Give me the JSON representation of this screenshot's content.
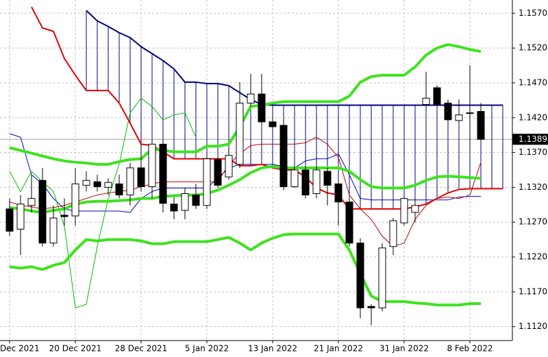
{
  "chart_data": {
    "type": "candlestick",
    "categories": [
      "Dec 2021",
      null,
      null,
      null,
      null,
      null,
      "20 Dec 2021",
      null,
      null,
      null,
      null,
      null,
      "28 Dec 2021",
      null,
      null,
      null,
      null,
      null,
      "5 Jan 2022",
      null,
      null,
      null,
      null,
      null,
      "13 Jan 2022",
      null,
      null,
      null,
      null,
      null,
      "21 Jan 2022",
      null,
      null,
      null,
      null,
      null,
      "31 Jan 2022",
      null,
      null,
      null,
      null,
      null,
      "8 Feb 2022",
      null,
      null,
      null
    ],
    "open": [
      1.1289,
      1.126,
      1.1294,
      1.133,
      1.124,
      1.128,
      1.1279,
      1.1323,
      1.1328,
      1.132,
      1.1325,
      1.1309,
      1.1348,
      1.1321,
      1.1382,
      1.1296,
      1.1287,
      1.1309,
      1.1294,
      1.136,
      1.1335,
      1.1353,
      1.1441,
      1.1454,
      1.1414,
      1.1409,
      1.1321,
      1.1345,
      1.1311,
      1.1343,
      1.1325,
      1.1299,
      1.124,
      1.1149,
      1.1147,
      1.1235,
      1.1269,
      1.1284,
      1.1439,
      1.1463,
      1.1441,
      1.1416,
      1.1426,
      1.1429,
      null,
      null
    ],
    "high": [
      1.1304,
      1.1309,
      1.1338,
      1.1348,
      1.1294,
      1.1304,
      1.1348,
      1.1343,
      1.1338,
      1.1333,
      1.1338,
      1.1355,
      1.1382,
      1.1387,
      1.1392,
      1.1306,
      1.1319,
      1.1325,
      1.1365,
      1.1365,
      1.1377,
      1.1471,
      1.1483,
      1.1483,
      1.1422,
      1.1417,
      1.1353,
      1.1353,
      1.1353,
      1.1348,
      1.1331,
      1.1304,
      1.1247,
      1.1152,
      1.124,
      1.1276,
      1.1309,
      1.1304,
      1.1486,
      1.1466,
      1.1446,
      1.1446,
      1.1495,
      1.1441,
      null,
      null
    ],
    "low": [
      1.125,
      1.1223,
      1.1284,
      1.1235,
      1.1235,
      1.1265,
      1.1265,
      1.1314,
      1.1314,
      1.1309,
      1.1304,
      1.1294,
      1.1314,
      1.1304,
      1.1284,
      1.1274,
      1.1274,
      1.1289,
      1.1289,
      1.1319,
      1.1331,
      1.1348,
      1.1436,
      1.1412,
      1.1404,
      1.1316,
      1.1319,
      1.1304,
      1.1304,
      1.1294,
      1.1265,
      1.1235,
      1.1132,
      1.1122,
      1.1142,
      1.1223,
      1.1265,
      1.127,
      1.1436,
      1.1436,
      1.1412,
      1.1412,
      1.1377,
      1.1387,
      null,
      null
    ],
    "close": [
      1.1257,
      1.1296,
      1.1304,
      1.124,
      1.1276,
      1.1278,
      1.1325,
      1.133,
      1.1321,
      1.1327,
      1.1309,
      1.1348,
      1.1321,
      1.1382,
      1.1297,
      1.1286,
      1.1311,
      1.1294,
      1.1361,
      1.1323,
      1.1366,
      1.1441,
      1.1454,
      1.1414,
      1.1407,
      1.1321,
      1.1345,
      1.1309,
      1.1345,
      1.1323,
      1.1299,
      1.124,
      1.1147,
      1.1147,
      1.1233,
      1.1272,
      1.1304,
      1.1294,
      1.1448,
      1.1439,
      1.1417,
      1.1424,
      1.1427,
      1.1389,
      null,
      null
    ],
    "up_color": "#ffffff",
    "down_color": "#000000",
    "cloud": {
      "color": "#000080"
    },
    "series": [
      {
        "color": "#000080",
        "width": 2,
        "values": [
          null,
          null,
          null,
          null,
          null,
          null,
          null,
          1.1574,
          1.1559,
          1.1551,
          1.1542,
          1.1535,
          1.1522,
          1.1512,
          1.1502,
          1.149,
          1.1471,
          1.1471,
          1.1469,
          1.1469,
          1.1466,
          1.1456,
          1.1446,
          1.1439,
          1.1438,
          1.1438,
          1.1438,
          1.1438,
          1.1438,
          1.1438,
          1.1438,
          1.1438,
          1.1438,
          1.1438,
          1.1438,
          1.1438,
          1.1438,
          1.1438,
          1.1438,
          1.1438,
          1.1438,
          1.1438,
          1.1438,
          1.1438,
          1.1438,
          1.1438
        ]
      },
      {
        "color": "#e00000",
        "width": 2,
        "values": [
          null,
          null,
          1.1579,
          1.1549,
          1.1544,
          1.1505,
          1.1481,
          1.1459,
          1.1459,
          1.1459,
          1.1441,
          1.1412,
          1.1382,
          1.138,
          1.1371,
          1.1361,
          1.1361,
          1.1361,
          1.1361,
          1.1361,
          1.1361,
          1.1351,
          1.1351,
          1.1353,
          1.1348,
          1.1345,
          1.1345,
          1.1335,
          1.1319,
          1.1312,
          1.1309,
          1.1289,
          1.1289,
          1.1289,
          1.1289,
          1.1289,
          1.1289,
          1.1292,
          1.1296,
          1.1304,
          1.1312,
          1.1317,
          1.1318,
          1.1318,
          1.1318,
          1.1318
        ]
      },
      {
        "color": "#0000c8",
        "width": 1,
        "values": [
          1.1397,
          1.1392,
          1.1338,
          1.1325,
          1.1304,
          1.1289,
          1.1286,
          1.1286,
          1.1286,
          1.1286,
          1.1286,
          1.1284,
          1.1304,
          1.1314,
          1.1319,
          1.1319,
          1.1319,
          1.1319,
          1.1319,
          1.1333,
          1.1348,
          1.1353,
          1.1353,
          1.1353,
          1.1353,
          1.135,
          1.1348,
          1.1358,
          1.1361,
          1.1361,
          1.1368,
          1.1338,
          1.1304,
          1.1302,
          1.1302,
          1.1302,
          1.1302,
          1.1302,
          1.1302,
          1.1302,
          1.1302,
          1.1306,
          1.1307,
          1.1307,
          null,
          null
        ]
      },
      {
        "color": "#c00000",
        "width": 1,
        "values": [
          1.1299,
          1.1294,
          1.1292,
          1.1289,
          1.1291,
          1.1294,
          1.1299,
          1.1304,
          1.1309,
          1.1312,
          1.1314,
          1.1316,
          1.1321,
          1.1325,
          1.1328,
          1.1328,
          1.1328,
          1.1328,
          1.1328,
          1.1328,
          1.1353,
          1.1368,
          1.138,
          1.1382,
          1.1382,
          1.1382,
          1.1382,
          1.1384,
          1.1392,
          1.1382,
          1.1363,
          1.1309,
          1.1289,
          1.1274,
          1.125,
          1.1235,
          1.124,
          1.1274,
          1.1294,
          1.1304,
          1.1306,
          1.1304,
          1.1309,
          1.1356,
          null,
          null
        ]
      },
      {
        "color": "#00c000",
        "width": 1,
        "values": [
          1.1343,
          1.1314,
          1.1343,
          1.1328,
          1.1314,
          1.1264,
          1.1147,
          1.1152,
          1.1235,
          1.1304,
          1.1353,
          1.1427,
          1.1448,
          1.1436,
          1.1417,
          1.1424,
          1.1427,
          1.1392,
          null,
          null,
          null,
          null,
          null,
          null,
          null,
          null,
          null,
          null,
          null,
          null,
          null,
          null,
          null,
          null,
          null,
          null,
          null,
          null,
          null,
          null,
          null,
          null,
          null,
          null,
          null,
          null
        ]
      },
      {
        "color": "#3ee21e",
        "width": 4,
        "values": [
          1.1377,
          1.1373,
          1.1369,
          1.1365,
          1.1361,
          1.1358,
          1.1356,
          1.1355,
          1.1353,
          1.1353,
          1.1357,
          1.136,
          1.1361,
          1.1375,
          1.1373,
          1.1371,
          1.1371,
          1.1371,
          1.1379,
          1.1379,
          1.1382,
          1.1407,
          1.1436,
          1.1438,
          1.1441,
          1.1443,
          1.1443,
          1.1443,
          1.1443,
          1.1443,
          1.1443,
          1.1451,
          1.1471,
          1.1479,
          1.1481,
          1.1481,
          1.1481,
          1.1493,
          1.151,
          1.152,
          1.1525,
          1.1522,
          1.1518,
          1.1515,
          null,
          null
        ]
      },
      {
        "color": "#3ee21e",
        "width": 4,
        "values": [
          1.1291,
          1.1289,
          1.1286,
          1.1284,
          1.1287,
          1.1289,
          1.1296,
          1.1299,
          1.13,
          1.13,
          1.1301,
          1.1302,
          1.1304,
          1.1304,
          1.1307,
          1.1308,
          1.1309,
          1.1309,
          1.1311,
          1.1316,
          1.1323,
          1.1331,
          1.1341,
          1.1348,
          1.135,
          1.1348,
          1.1348,
          1.1348,
          1.1348,
          1.1348,
          1.1348,
          1.1343,
          1.1331,
          1.1321,
          1.1319,
          1.1319,
          1.1319,
          1.1323,
          1.133,
          1.1335,
          1.1336,
          1.1335,
          1.1334,
          1.1333,
          null,
          null
        ]
      },
      {
        "color": "#3ee21e",
        "width": 4,
        "values": [
          1.1206,
          1.1204,
          1.1206,
          1.1202,
          1.1208,
          1.1212,
          1.123,
          1.1245,
          1.1243,
          1.1245,
          1.1245,
          1.1245,
          1.1243,
          1.1239,
          1.1239,
          1.1242,
          1.1242,
          1.1242,
          1.1242,
          1.1245,
          1.1248,
          1.124,
          1.123,
          1.124,
          1.1247,
          1.1252,
          1.1253,
          1.1253,
          1.1253,
          1.1253,
          1.1253,
          1.123,
          1.1196,
          1.1164,
          1.1156,
          1.1156,
          1.1156,
          1.1154,
          1.1153,
          1.1151,
          1.1151,
          1.1151,
          1.1153,
          1.1153,
          null,
          null
        ]
      }
    ],
    "ylim": [
      1.11,
      1.1589
    ],
    "yticks": [
      {
        "value": 1.112,
        "label": "1.1120"
      },
      {
        "value": 1.117,
        "label": "1.1170"
      },
      {
        "value": 1.122,
        "label": "1.1220"
      },
      {
        "value": 1.127,
        "label": "1.1270"
      },
      {
        "value": 1.132,
        "label": "1.1320"
      },
      {
        "value": 1.137,
        "label": "1.1370"
      },
      {
        "value": 1.142,
        "label": "1.1420"
      },
      {
        "value": 1.147,
        "label": "1.1470"
      },
      {
        "value": 1.152,
        "label": "1.1520"
      },
      {
        "value": 1.157,
        "label": "1.1570"
      }
    ],
    "last_price": {
      "value": 1.1389,
      "label": "1.1389"
    },
    "grid": true
  }
}
